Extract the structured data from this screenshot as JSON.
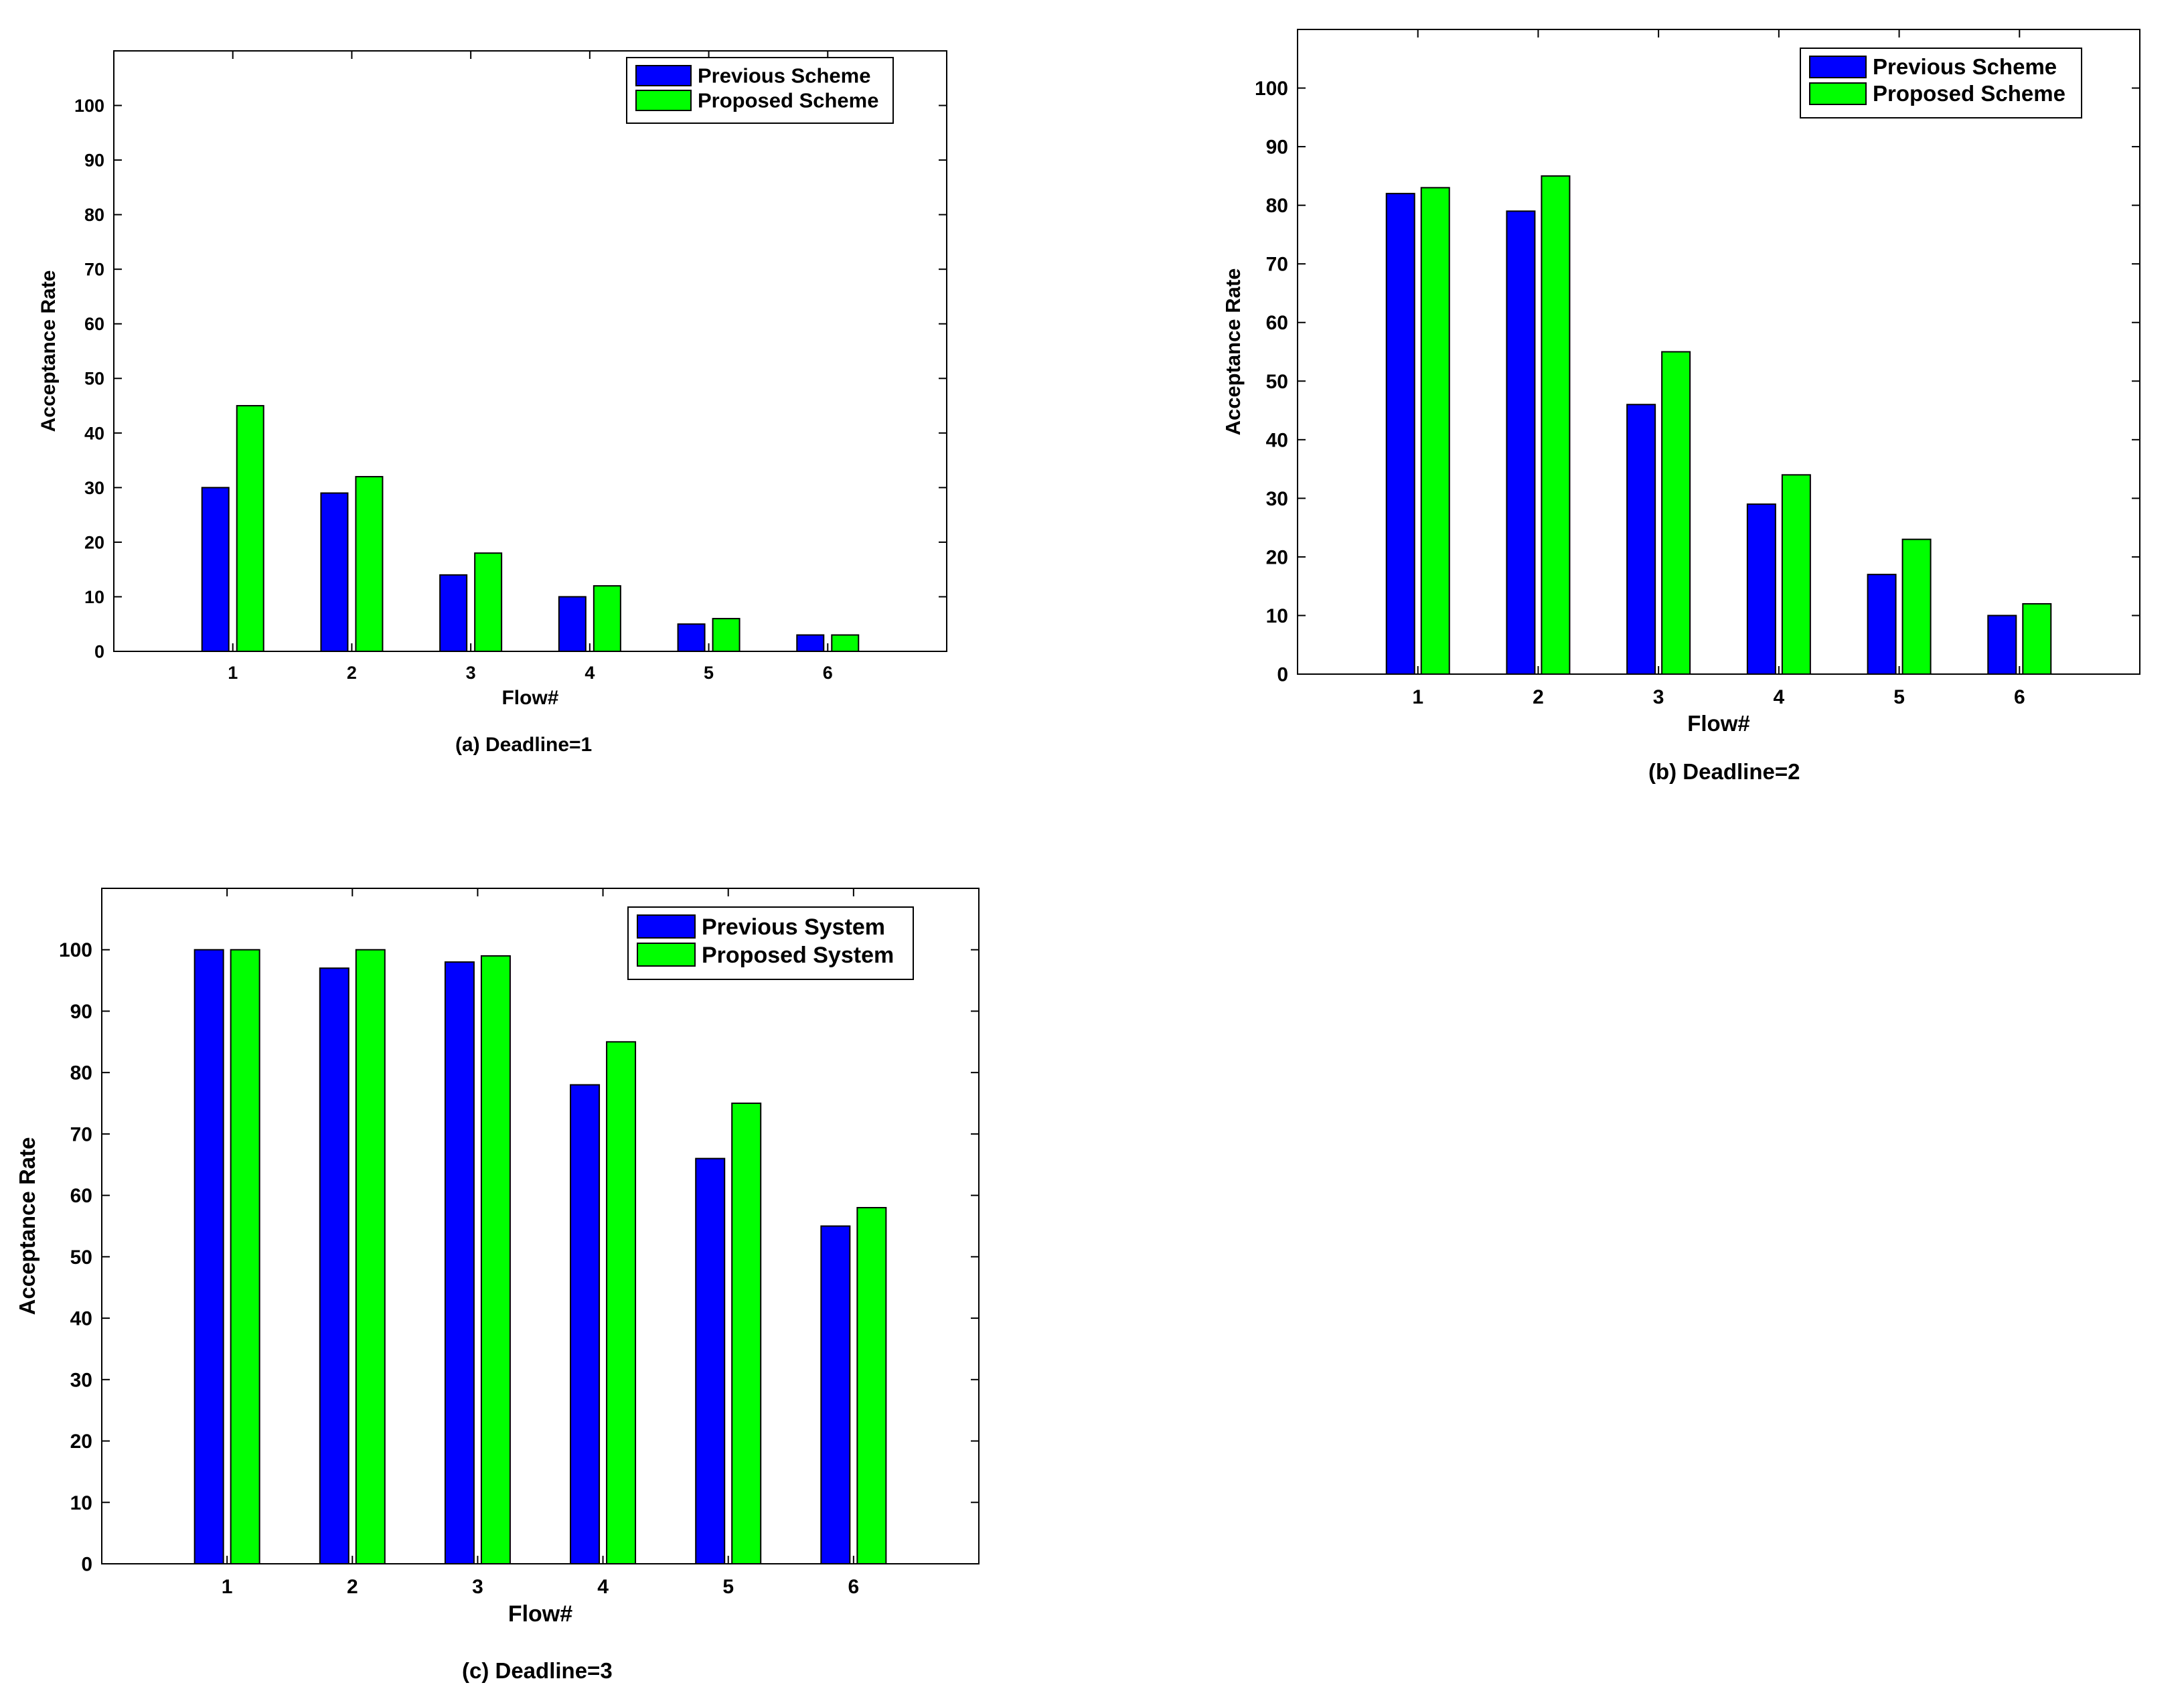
{
  "colors": {
    "previous": "#0000ff",
    "proposed": "#00ff00",
    "axis": "#000000",
    "background": "#ffffff"
  },
  "chart_data": [
    {
      "id": "a",
      "type": "bar",
      "caption": "(a) Deadline=1",
      "xlabel": "Flow#",
      "ylabel": "Acceptance Rate",
      "categories": [
        "1",
        "2",
        "3",
        "4",
        "5",
        "6"
      ],
      "xlim": [
        0,
        7
      ],
      "ylim": [
        0,
        110
      ],
      "yticks": [
        0,
        10,
        20,
        30,
        40,
        50,
        60,
        70,
        80,
        90,
        100
      ],
      "grid": false,
      "legend_position": "top-right",
      "series": [
        {
          "name": "Previous Scheme",
          "color": "#0000ff",
          "values": [
            30,
            29,
            14,
            10,
            5,
            3
          ]
        },
        {
          "name": "Proposed Scheme",
          "color": "#00ff00",
          "values": [
            45,
            32,
            18,
            12,
            6,
            3
          ]
        }
      ]
    },
    {
      "id": "b",
      "type": "bar",
      "caption": "(b) Deadline=2",
      "xlabel": "Flow#",
      "ylabel": "Acceptance Rate",
      "categories": [
        "1",
        "2",
        "3",
        "4",
        "5",
        "6"
      ],
      "xlim": [
        0,
        7
      ],
      "ylim": [
        0,
        110
      ],
      "yticks": [
        0,
        10,
        20,
        30,
        40,
        50,
        60,
        70,
        80,
        90,
        100
      ],
      "grid": false,
      "legend_position": "top-right",
      "series": [
        {
          "name": "Previous Scheme",
          "color": "#0000ff",
          "values": [
            82,
            79,
            46,
            29,
            17,
            10
          ]
        },
        {
          "name": "Proposed Scheme",
          "color": "#00ff00",
          "values": [
            83,
            85,
            55,
            34,
            23,
            12
          ]
        }
      ]
    },
    {
      "id": "c",
      "type": "bar",
      "caption": "(c) Deadline=3",
      "xlabel": "Flow#",
      "ylabel": "Acceptance Rate",
      "categories": [
        "1",
        "2",
        "3",
        "4",
        "5",
        "6"
      ],
      "xlim": [
        0,
        7
      ],
      "ylim": [
        0,
        110
      ],
      "yticks": [
        0,
        10,
        20,
        30,
        40,
        50,
        60,
        70,
        80,
        90,
        100
      ],
      "grid": false,
      "legend_position": "top-right",
      "series": [
        {
          "name": "Previous System",
          "color": "#0000ff",
          "values": [
            100,
            97,
            98,
            78,
            66,
            55
          ]
        },
        {
          "name": "Proposed System",
          "color": "#00ff00",
          "values": [
            100,
            100,
            99,
            85,
            75,
            58
          ]
        }
      ]
    }
  ]
}
